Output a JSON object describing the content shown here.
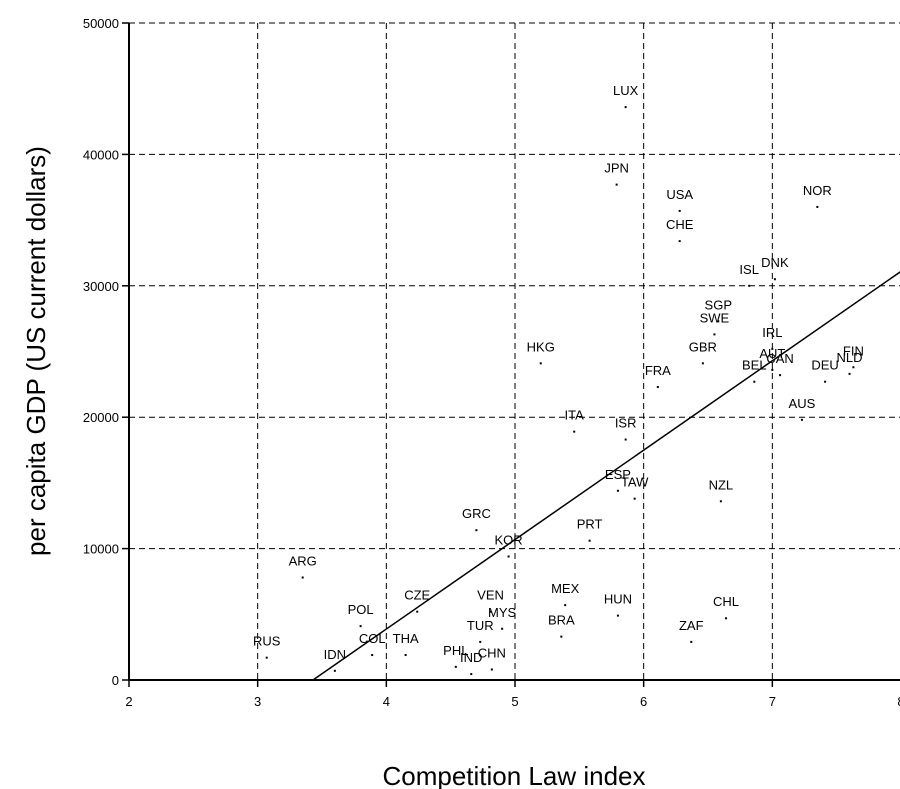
{
  "chart_data": {
    "type": "scatter",
    "title": "",
    "xlabel": "Competition Law index",
    "ylabel": "per capita GDP (US current dollars)",
    "xlim": [
      2,
      8
    ],
    "ylim": [
      0,
      50000
    ],
    "x_ticks": [
      "2",
      "3",
      "4",
      "5",
      "6",
      "7",
      "8"
    ],
    "y_ticks": [
      "0",
      "10000",
      "20000",
      "30000",
      "40000",
      "50000"
    ],
    "grid": "dashed",
    "legend": "none",
    "trendline": {
      "x1": 3.43,
      "y1": 0,
      "x2": 8.0,
      "y2": 31100
    },
    "points": [
      {
        "label": "LUX",
        "x": 5.86,
        "y": 43600
      },
      {
        "label": "JPN",
        "x": 5.79,
        "y": 37700
      },
      {
        "label": "USA",
        "x": 6.28,
        "y": 35700
      },
      {
        "label": "CHE",
        "x": 6.28,
        "y": 33400
      },
      {
        "label": "NOR",
        "x": 7.35,
        "y": 36000
      },
      {
        "label": "ISL",
        "x": 6.82,
        "y": 30000
      },
      {
        "label": "DNK",
        "x": 7.02,
        "y": 30500
      },
      {
        "label": "SGP",
        "x": 6.58,
        "y": 27300
      },
      {
        "label": "SWE",
        "x": 6.55,
        "y": 26300
      },
      {
        "label": "IRL",
        "x": 7.0,
        "y": 25200
      },
      {
        "label": "HKG",
        "x": 5.2,
        "y": 24100
      },
      {
        "label": "GBR",
        "x": 6.46,
        "y": 24100
      },
      {
        "label": "AUT",
        "x": 7.0,
        "y": 23600
      },
      {
        "label": "BEL",
        "x": 6.86,
        "y": 22700
      },
      {
        "label": "CAN",
        "x": 7.06,
        "y": 23200
      },
      {
        "label": "FRA",
        "x": 6.11,
        "y": 22300
      },
      {
        "label": "DEU",
        "x": 7.41,
        "y": 22700
      },
      {
        "label": "NLD",
        "x": 7.6,
        "y": 23300
      },
      {
        "label": "FIN",
        "x": 7.63,
        "y": 23800
      },
      {
        "label": "AUS",
        "x": 7.23,
        "y": 19800
      },
      {
        "label": "ITA",
        "x": 5.46,
        "y": 18900
      },
      {
        "label": "ISR",
        "x": 5.86,
        "y": 18300
      },
      {
        "label": "ESP",
        "x": 5.8,
        "y": 14400
      },
      {
        "label": "TAW",
        "x": 5.93,
        "y": 13800
      },
      {
        "label": "NZL",
        "x": 6.6,
        "y": 13600
      },
      {
        "label": "GRC",
        "x": 4.7,
        "y": 11400
      },
      {
        "label": "PRT",
        "x": 5.58,
        "y": 10600
      },
      {
        "label": "KOR",
        "x": 4.95,
        "y": 9400
      },
      {
        "label": "ARG",
        "x": 3.35,
        "y": 7800
      },
      {
        "label": "MEX",
        "x": 5.39,
        "y": 5700
      },
      {
        "label": "VEN",
        "x": 4.81,
        "y": 5200
      },
      {
        "label": "MYS",
        "x": 4.9,
        "y": 3900
      },
      {
        "label": "HUN",
        "x": 5.8,
        "y": 4900
      },
      {
        "label": "CHL",
        "x": 6.64,
        "y": 4700
      },
      {
        "label": "CZE",
        "x": 4.24,
        "y": 5200
      },
      {
        "label": "POL",
        "x": 3.8,
        "y": 4100
      },
      {
        "label": "BRA",
        "x": 5.36,
        "y": 3300
      },
      {
        "label": "TUR",
        "x": 4.73,
        "y": 2900
      },
      {
        "label": "ZAF",
        "x": 6.37,
        "y": 2900
      },
      {
        "label": "COL",
        "x": 3.89,
        "y": 1900
      },
      {
        "label": "THA",
        "x": 4.15,
        "y": 1900
      },
      {
        "label": "RUS",
        "x": 3.07,
        "y": 1700
      },
      {
        "label": "IDN",
        "x": 3.6,
        "y": 700
      },
      {
        "label": "PHL",
        "x": 4.54,
        "y": 1000
      },
      {
        "label": "CHN",
        "x": 4.82,
        "y": 800
      },
      {
        "label": "IND",
        "x": 4.66,
        "y": 450
      }
    ]
  }
}
